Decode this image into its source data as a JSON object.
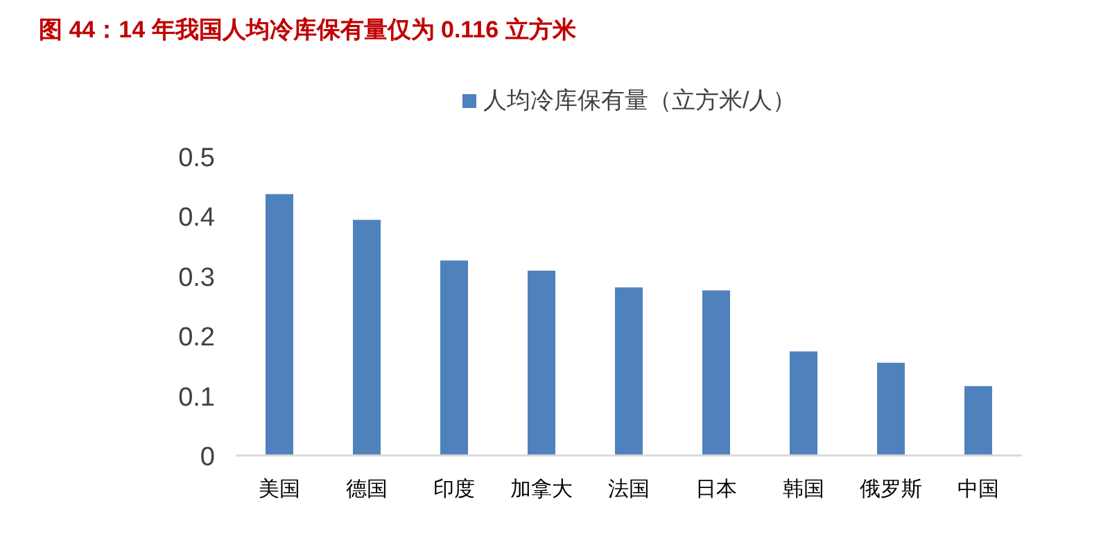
{
  "chart_data": {
    "type": "bar",
    "title": "图 44：14  年我国人均冷库保有量仅为 0.116  立方米",
    "categories": [
      "美国",
      "德国",
      "印度",
      "加拿大",
      "法国",
      "日本",
      "韩国",
      "俄罗斯",
      "中国"
    ],
    "series": [
      {
        "name": "人均冷库保有量（立方米/人）",
        "color": "#4f81bd",
        "values": [
          0.437,
          0.394,
          0.326,
          0.309,
          0.281,
          0.276,
          0.174,
          0.155,
          0.116
        ]
      }
    ],
    "ylim": [
      0,
      0.5
    ],
    "yticks": [
      0,
      0.1,
      0.2,
      0.3,
      0.4,
      0.5
    ],
    "grid": false,
    "legend": "top"
  }
}
